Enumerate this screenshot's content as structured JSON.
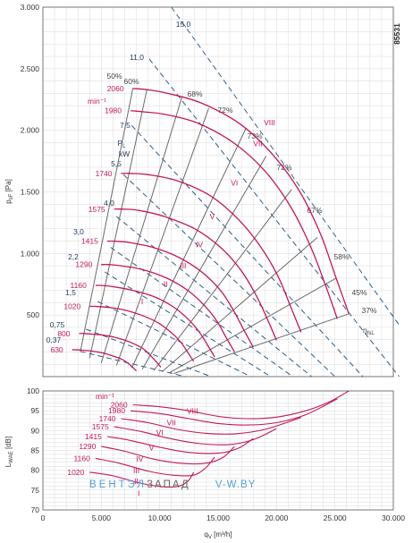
{
  "chart_data": [
    {
      "type": "line",
      "chart_code": "85531",
      "xlabel": "q",
      "xlabel_sub": "V",
      "xlabel_unit": "[m³/h]",
      "ylabel": "p",
      "ylabel_sub": "sF",
      "ylabel_unit": "[Pa]",
      "xlim": [
        0,
        30000
      ],
      "ylim": [
        0,
        3000
      ],
      "x_ticks": [
        0,
        5000,
        10000,
        15000,
        20000,
        25000,
        30000
      ],
      "x_tick_labels": [
        "0",
        "5.000",
        "10.000",
        "15.000",
        "20.000",
        "25.000",
        "30.000"
      ],
      "y_ticks": [
        500,
        1000,
        1500,
        2000,
        2500,
        3000
      ],
      "y_tick_labels": [
        "500",
        "1.000",
        "1.500",
        "2.000",
        "2.500",
        "3.000"
      ],
      "grid": true,
      "rpm_unit": "min⁻¹",
      "speed_curves": [
        {
          "rpm": "2060",
          "x": [
            7700,
            8900,
            10700,
            13600,
            16900,
            19700,
            22000,
            23800,
            25100,
            26200
          ],
          "y": [
            2340,
            2330,
            2300,
            2220,
            2050,
            1800,
            1500,
            1150,
            800,
            510
          ]
        },
        {
          "rpm": "1980",
          "x": [
            7500,
            8600,
            10400,
            13200,
            16300,
            19000,
            21200,
            22900,
            24200,
            25200
          ],
          "y": [
            2160,
            2150,
            2130,
            2060,
            1900,
            1670,
            1380,
            1060,
            740,
            470
          ]
        },
        {
          "rpm": "1740",
          "x": [
            6700,
            7500,
            9000,
            11500,
            14300,
            16700,
            18600,
            20100,
            21200,
            22100
          ],
          "y": [
            1650,
            1650,
            1640,
            1590,
            1470,
            1280,
            1060,
            820,
            570,
            360
          ]
        },
        {
          "rpm": "1575",
          "x": [
            6100,
            6800,
            8200,
            10400,
            13000,
            15200,
            16900,
            18200,
            19200,
            20000
          ],
          "y": [
            1360,
            1360,
            1350,
            1300,
            1200,
            1050,
            870,
            670,
            470,
            295
          ]
        },
        {
          "rpm": "1415",
          "x": [
            5500,
            6100,
            7300,
            9400,
            11600,
            13600,
            15200,
            16300,
            17200,
            18000
          ],
          "y": [
            1100,
            1100,
            1090,
            1050,
            970,
            850,
            700,
            540,
            380,
            240
          ]
        },
        {
          "rpm": "1290",
          "x": [
            5000,
            5600,
            6700,
            8500,
            10600,
            12400,
            13800,
            14900,
            15700,
            16400
          ],
          "y": [
            910,
            910,
            900,
            870,
            800,
            700,
            580,
            450,
            315,
            200
          ]
        },
        {
          "rpm": "1160",
          "x": [
            4500,
            5000,
            6000,
            7700,
            9500,
            11100,
            12400,
            13400,
            14100,
            14700
          ],
          "y": [
            740,
            740,
            730,
            700,
            650,
            570,
            470,
            360,
            255,
            160
          ]
        },
        {
          "rpm": "1020",
          "x": [
            4000,
            4400,
            5300,
            6800,
            8400,
            9800,
            10900,
            11800,
            12400,
            12900
          ],
          "y": [
            570,
            570,
            565,
            545,
            500,
            440,
            365,
            280,
            197,
            124
          ]
        },
        {
          "rpm": "800",
          "x": [
            3100,
            3500,
            4200,
            5300,
            6600,
            7700,
            8600,
            9200,
            9700,
            10100
          ],
          "y": [
            350,
            350,
            345,
            335,
            308,
            270,
            225,
            172,
            121,
            76
          ]
        },
        {
          "rpm": "630",
          "x": [
            2500,
            2700,
            3300,
            4200,
            5200,
            6000,
            6800,
            7300,
            7700,
            8000
          ],
          "y": [
            218,
            218,
            215,
            207,
            190,
            167,
            139,
            107,
            75,
            47
          ]
        }
      ],
      "efficiency_lines": [
        {
          "label": "50%",
          "x": [
            3200,
            7700
          ],
          "y": [
            200,
            2340
          ]
        },
        {
          "label": "60%",
          "x": [
            4000,
            8900
          ],
          "y": [
            150,
            2330
          ]
        },
        {
          "label": "68%",
          "x": [
            5000,
            11900
          ],
          "y": [
            110,
            2270
          ]
        },
        {
          "label": "72%",
          "x": [
            6300,
            14200
          ],
          "y": [
            90,
            2180
          ]
        },
        {
          "label": "73%",
          "x": [
            7600,
            17400
          ],
          "y": [
            70,
            2020
          ]
        },
        {
          "label": "72%",
          "x": [
            8500,
            19100
          ],
          "y": [
            60,
            1790
          ]
        },
        {
          "label": "67%",
          "x": [
            9500,
            21300
          ],
          "y": [
            50,
            1520
          ]
        },
        {
          "label": "58%",
          "x": [
            10200,
            23500
          ],
          "y": [
            40,
            1130
          ]
        },
        {
          "label": "45%",
          "x": [
            10800,
            25100
          ],
          "y": [
            30,
            800
          ]
        },
        {
          "label": "37%",
          "x": [
            11200,
            26200
          ],
          "y": [
            25,
            510
          ]
        }
      ],
      "efficiency_symbol": "η",
      "efficiency_symbol_sub": "fsL",
      "power_label": "P",
      "power_label_sub": "L",
      "power_unit": "kW",
      "power_lines": [
        {
          "label": "0,37",
          "x": [
            3200,
            12200
          ],
          "y": [
            205,
            0
          ]
        },
        {
          "label": "0,75",
          "x": [
            3700,
            14400
          ],
          "y": [
            385,
            0
          ]
        },
        {
          "label": "1,5",
          "x": [
            4700,
            17800
          ],
          "y": [
            610,
            0
          ]
        },
        {
          "label": "2,2",
          "x": [
            5300,
            19500
          ],
          "y": [
            850,
            0
          ]
        },
        {
          "label": "3,0",
          "x": [
            5800,
            21400
          ],
          "y": [
            1050,
            0
          ]
        },
        {
          "label": "4,0",
          "x": [
            6300,
            23000
          ],
          "y": [
            1300,
            0
          ]
        },
        {
          "label": "5,5",
          "x": [
            6900,
            25000
          ],
          "y": [
            1640,
            0
          ]
        },
        {
          "label": "7,5",
          "x": [
            7600,
            27400
          ],
          "y": [
            2040,
            0
          ]
        },
        {
          "label": "11,0",
          "x": [
            9100,
            30500
          ],
          "y": [
            2580,
            0
          ]
        },
        {
          "label": "15,0",
          "x": [
            11000,
            30500
          ],
          "y": [
            3000,
            420
          ]
        }
      ],
      "operating_ranges": [
        {
          "label": "I",
          "x": 8500,
          "y": 590
        },
        {
          "label": "II",
          "x": 10500,
          "y": 730
        },
        {
          "label": "III",
          "x": 12000,
          "y": 880
        },
        {
          "label": "IV",
          "x": 13400,
          "y": 1050
        },
        {
          "label": "V",
          "x": 14500,
          "y": 1280
        },
        {
          "label": "VI",
          "x": 16400,
          "y": 1550
        },
        {
          "label": "VII",
          "x": 18400,
          "y": 1870
        },
        {
          "label": "VIII",
          "x": 19400,
          "y": 2040
        }
      ]
    },
    {
      "type": "line",
      "xlabel": "q",
      "xlabel_sub": "V",
      "xlabel_unit": "[m³/h]",
      "ylabel": "L",
      "ylabel_sub": "WAE",
      "ylabel_unit": "[dB]",
      "xlim": [
        0,
        30000
      ],
      "ylim": [
        70,
        100
      ],
      "y_ticks": [
        70,
        75,
        80,
        85,
        90,
        95,
        100
      ],
      "y_tick_labels": [
        "70",
        "75",
        "80",
        "85",
        "90",
        "95",
        "100"
      ],
      "grid": true,
      "rpm_unit": "min⁻¹",
      "sound_curves": [
        {
          "rpm": "2060",
          "x": [
            7700,
            10000,
            12500,
            15000,
            17500,
            20000,
            22500,
            24500,
            26200
          ],
          "y": [
            96.5,
            96.0,
            95.0,
            93.6,
            93.0,
            93.4,
            95.0,
            97.2,
            100
          ]
        },
        {
          "rpm": "1980",
          "x": [
            7500,
            10000,
            12500,
            15000,
            17500,
            20000,
            22500,
            25200
          ],
          "y": [
            95.0,
            94.3,
            93.0,
            91.8,
            91.4,
            92.0,
            94.0,
            98.0
          ]
        },
        {
          "rpm": "1740",
          "x": [
            6700,
            9000,
            11500,
            14000,
            16500,
            19000,
            22100
          ],
          "y": [
            93.0,
            92.0,
            90.3,
            89.3,
            89.2,
            90.3,
            93.3
          ]
        },
        {
          "rpm": "1575",
          "x": [
            6100,
            8500,
            11000,
            13500,
            16000,
            18000,
            20000
          ],
          "y": [
            91.0,
            89.7,
            87.9,
            86.7,
            86.5,
            87.7,
            90.5
          ]
        },
        {
          "rpm": "1415",
          "x": [
            5500,
            7500,
            10000,
            12500,
            15000,
            16700,
            18000
          ],
          "y": [
            88.5,
            87.5,
            85.8,
            84.5,
            84.3,
            85.5,
            88.0
          ]
        },
        {
          "rpm": "1290",
          "x": [
            5000,
            7000,
            9500,
            12000,
            14000,
            15400,
            16400
          ],
          "y": [
            86.0,
            84.8,
            82.8,
            81.7,
            81.8,
            83.2,
            86.0
          ]
        },
        {
          "rpm": "1160",
          "x": [
            4500,
            6500,
            9000,
            11000,
            12800,
            13900,
            14700
          ],
          "y": [
            83.0,
            81.8,
            79.8,
            78.8,
            78.7,
            80.5,
            83.3
          ]
        },
        {
          "rpm": "1020",
          "x": [
            4000,
            6000,
            8000,
            10000,
            11500,
            12400,
            12900
          ],
          "y": [
            79.5,
            78.6,
            77.0,
            75.9,
            75.9,
            77.2,
            79.5
          ]
        }
      ],
      "operating_ranges": [
        {
          "label": "I",
          "x": 8200,
          "y": 73.5
        },
        {
          "label": "II",
          "x": 8000,
          "y": 76.5
        },
        {
          "label": "III",
          "x": 8000,
          "y": 79.3
        },
        {
          "label": "IV",
          "x": 8300,
          "y": 82.2
        },
        {
          "label": "V",
          "x": 9300,
          "y": 85.0
        },
        {
          "label": "VI",
          "x": 10000,
          "y": 88.8
        },
        {
          "label": "VII",
          "x": 11000,
          "y": 91.3
        },
        {
          "label": "VIII",
          "x": 12800,
          "y": 94.2
        }
      ]
    }
  ],
  "watermark": {
    "part1": "ВЕНТ",
    "part2": "ЭЛ",
    "part3": "ЗАПАД",
    "part4": "V-W.BY"
  }
}
